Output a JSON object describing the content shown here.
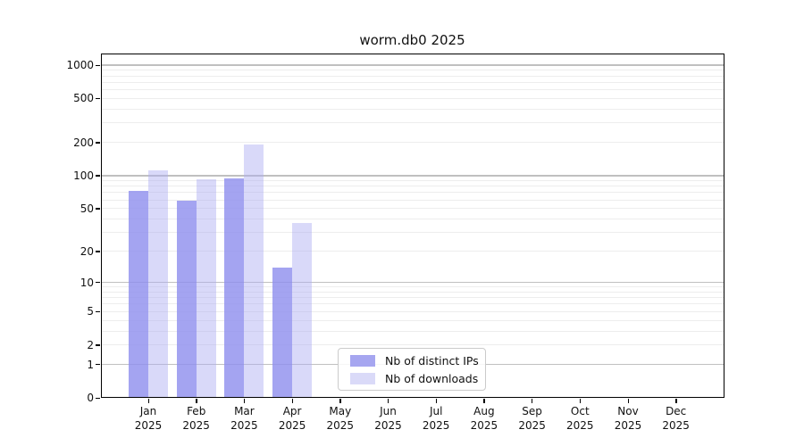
{
  "figure": {
    "background": "#ffffff",
    "text_color": "#111111"
  },
  "chart_data": {
    "type": "bar",
    "title": "worm.db0 2025",
    "categories": [
      "Jan",
      "Feb",
      "Mar",
      "Apr",
      "May",
      "Jun",
      "Jul",
      "Aug",
      "Sep",
      "Oct",
      "Nov",
      "Dec"
    ],
    "x_year_label": "2025",
    "series": [
      {
        "name": "Nb of distinct IPs",
        "color": "#a6a6f0",
        "fill": "rgba(141,141,237,0.80)",
        "values": [
          72,
          59,
          94,
          14,
          0,
          0,
          0,
          0,
          0,
          0,
          0,
          0
        ]
      },
      {
        "name": "Nb of downloads",
        "color": "#dadaf8",
        "fill": "rgba(173,173,242,0.46)",
        "values": [
          111,
          92,
          190,
          37,
          0,
          0,
          0,
          0,
          0,
          0,
          0,
          0
        ]
      }
    ],
    "yscale": "log1p",
    "yticks": [
      0,
      1,
      2,
      5,
      10,
      20,
      50,
      100,
      200,
      500,
      1000
    ],
    "ylim": [
      0,
      1270
    ],
    "grid": {
      "on": true,
      "major_values": [
        1,
        10,
        100,
        1000
      ],
      "major_color": "#c0c0c0",
      "minor_color": "#ededed"
    },
    "legend_position": "lower center",
    "axis_color": "#000000"
  }
}
